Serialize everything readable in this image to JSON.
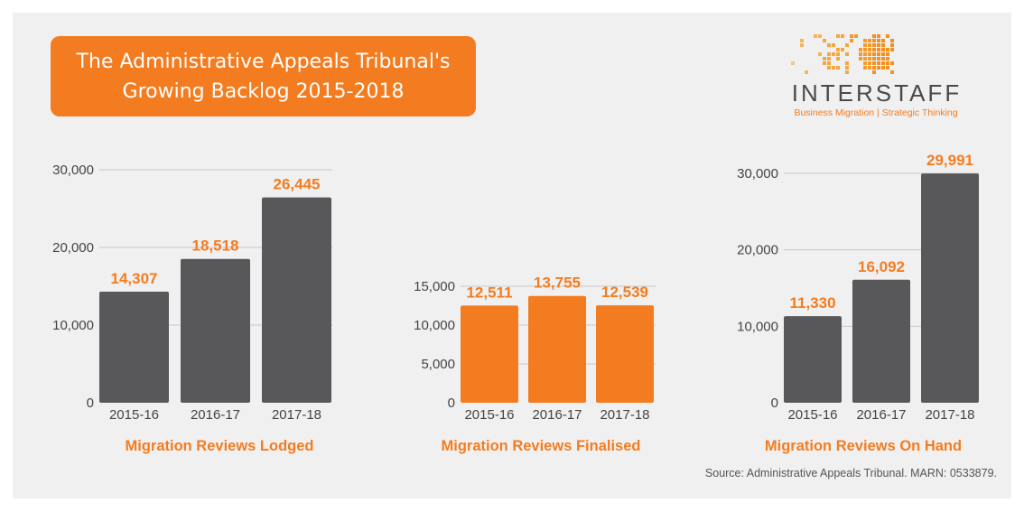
{
  "title_lines": [
    "The Administrative Appeals Tribunal's",
    "Growing Backlog 2015-2018"
  ],
  "logo": {
    "name": "INTERSTAFF",
    "tagline": "Business Migration | Strategic Thinking"
  },
  "source": "Source: Administrative Appeals Tribunal. MARN: 0533879.",
  "colors": {
    "accent": "#f47c20",
    "dark_bar": "#58585a",
    "panel": "#f0f0f0"
  },
  "chart_data": [
    {
      "type": "bar",
      "title": "Migration Reviews Lodged",
      "categories": [
        "2015-16",
        "2016-17",
        "2017-18"
      ],
      "values": [
        14307,
        18518,
        26445
      ],
      "value_labels": [
        "14,307",
        "18,518",
        "26,445"
      ],
      "ylim": [
        0,
        30000
      ],
      "yticks": [
        0,
        10000,
        20000,
        30000
      ],
      "ytick_labels": [
        "0",
        "10,000",
        "20,000",
        "30,000"
      ],
      "bar_color": "#58585a",
      "grid": true
    },
    {
      "type": "bar",
      "title": "Migration Reviews Finalised",
      "categories": [
        "2015-16",
        "2016-17",
        "2017-18"
      ],
      "values": [
        12511,
        13755,
        12539
      ],
      "value_labels": [
        "12,511",
        "13,755",
        "12,539"
      ],
      "ylim": [
        0,
        15000
      ],
      "yticks": [
        0,
        5000,
        10000,
        15000
      ],
      "ytick_labels": [
        "0",
        "5,000",
        "10,000",
        "15,000"
      ],
      "bar_color": "#f47c20",
      "grid": true
    },
    {
      "type": "bar",
      "title": "Migration Reviews On Hand",
      "categories": [
        "2015-16",
        "2016-17",
        "2017-18"
      ],
      "values": [
        11330,
        16092,
        29991
      ],
      "value_labels": [
        "11,330",
        "16,092",
        "29,991"
      ],
      "ylim": [
        0,
        30000
      ],
      "yticks": [
        0,
        10000,
        20000,
        30000
      ],
      "ytick_labels": [
        "0",
        "10,000",
        "20,000",
        "30,000"
      ],
      "bar_color": "#58585a",
      "grid": true
    }
  ]
}
